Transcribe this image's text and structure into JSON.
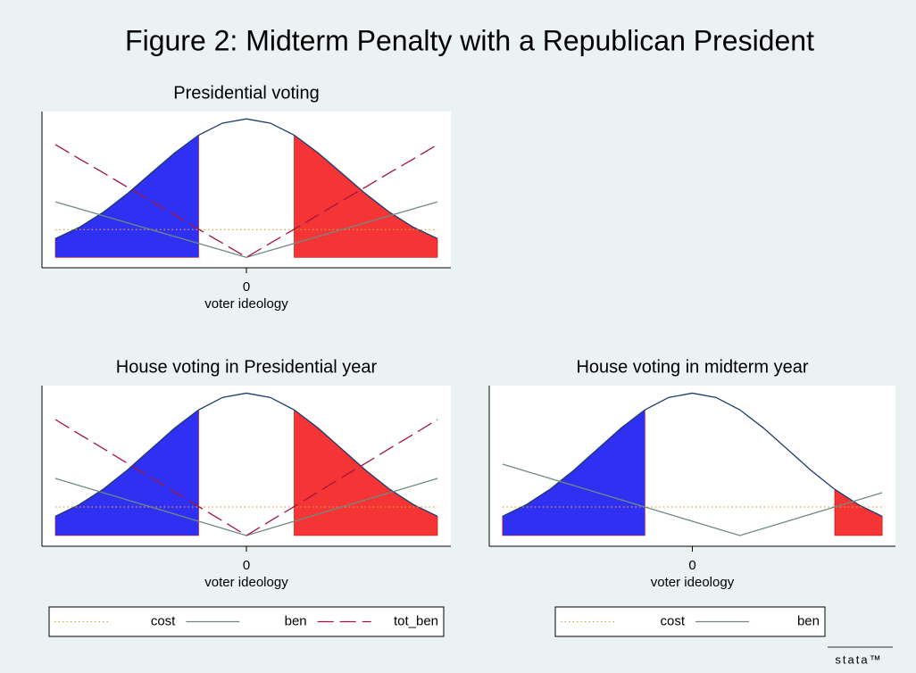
{
  "title": "Figure 2: Midterm Penalty with a Republican President",
  "logo": "stata™",
  "chart_data": [
    {
      "type": "line",
      "title": "Presidential voting",
      "xlabel": "voter ideology",
      "x": [
        -2,
        -1.75,
        -1.5,
        -1.25,
        -1,
        -0.75,
        -0.5,
        -0.25,
        0,
        0.25,
        0.5,
        0.75,
        1,
        1.25,
        1.5,
        1.75,
        2
      ],
      "xlim": [
        -2.14,
        2.14
      ],
      "ylim": [
        -0.03,
        0.42
      ],
      "xticks": [
        0
      ],
      "legend": false,
      "density": {
        "color": "#1a3a6e",
        "values": [
          0.054,
          0.0863,
          0.1295,
          0.1826,
          0.242,
          0.3011,
          0.3521,
          0.3867,
          0.3989,
          0.3867,
          0.3521,
          0.3011,
          0.242,
          0.1826,
          0.1295,
          0.0863,
          0.054
        ]
      },
      "shaded": [
        {
          "from": -2,
          "to": -0.5,
          "color": "#3030f2"
        },
        {
          "from": 0.5,
          "to": 2,
          "color": "#f53535"
        }
      ],
      "series": [
        {
          "name": "cost",
          "color": "#e0a040",
          "style": "dotted",
          "values": [
            0.08,
            0.08,
            0.08,
            0.08,
            0.08,
            0.08,
            0.08,
            0.08,
            0.08,
            0.08,
            0.08,
            0.08,
            0.08,
            0.08,
            0.08,
            0.08,
            0.08
          ]
        },
        {
          "name": "ben",
          "color": "#6f8a80",
          "style": "solid",
          "values": [
            0.16,
            0.14,
            0.12,
            0.1,
            0.08,
            0.06,
            0.04,
            0.02,
            0,
            0.02,
            0.04,
            0.06,
            0.08,
            0.1,
            0.12,
            0.14,
            0.16
          ]
        },
        {
          "name": "tot_ben",
          "color": "#a3143c",
          "style": "dashed",
          "values": [
            0.325,
            0.284,
            0.244,
            0.203,
            0.163,
            0.122,
            0.081,
            0.041,
            0,
            0.041,
            0.081,
            0.122,
            0.163,
            0.203,
            0.244,
            0.284,
            0.325
          ]
        }
      ]
    },
    {
      "type": "line",
      "title": "House voting in Presidential year",
      "xlabel": "voter ideology",
      "x": [
        -2,
        -1.75,
        -1.5,
        -1.25,
        -1,
        -0.75,
        -0.5,
        -0.25,
        0,
        0.25,
        0.5,
        0.75,
        1,
        1.25,
        1.5,
        1.75,
        2
      ],
      "xlim": [
        -2.14,
        2.14
      ],
      "ylim": [
        -0.03,
        0.42
      ],
      "xticks": [
        0
      ],
      "legend": true,
      "density": {
        "color": "#1a3a6e",
        "values": [
          0.054,
          0.0863,
          0.1295,
          0.1826,
          0.242,
          0.3011,
          0.3521,
          0.3867,
          0.3989,
          0.3867,
          0.3521,
          0.3011,
          0.242,
          0.1826,
          0.1295,
          0.0863,
          0.054
        ]
      },
      "shaded": [
        {
          "from": -2,
          "to": -0.5,
          "color": "#3030f2"
        },
        {
          "from": 0.5,
          "to": 2,
          "color": "#f53535"
        }
      ],
      "series": [
        {
          "name": "cost",
          "color": "#e0a040",
          "style": "dotted",
          "values": [
            0.08,
            0.08,
            0.08,
            0.08,
            0.08,
            0.08,
            0.08,
            0.08,
            0.08,
            0.08,
            0.08,
            0.08,
            0.08,
            0.08,
            0.08,
            0.08,
            0.08
          ]
        },
        {
          "name": "ben",
          "color": "#6f8a80",
          "style": "solid",
          "values": [
            0.16,
            0.14,
            0.12,
            0.1,
            0.08,
            0.06,
            0.04,
            0.02,
            0,
            0.02,
            0.04,
            0.06,
            0.08,
            0.1,
            0.12,
            0.14,
            0.16
          ]
        },
        {
          "name": "tot_ben",
          "color": "#a3143c",
          "style": "dashed",
          "values": [
            0.325,
            0.284,
            0.244,
            0.203,
            0.163,
            0.122,
            0.081,
            0.041,
            0,
            0.041,
            0.081,
            0.122,
            0.163,
            0.203,
            0.244,
            0.284,
            0.325
          ]
        }
      ]
    },
    {
      "type": "line",
      "title": "House voting in midterm year",
      "xlabel": "voter ideology",
      "x": [
        -2,
        -1.75,
        -1.5,
        -1.25,
        -1,
        -0.75,
        -0.5,
        -0.25,
        0,
        0.25,
        0.5,
        0.75,
        1,
        1.25,
        1.5,
        1.75,
        2
      ],
      "xlim": [
        -2.14,
        2.14
      ],
      "ylim": [
        -0.03,
        0.42
      ],
      "xticks": [
        0
      ],
      "legend": true,
      "density": {
        "color": "#1a3a6e",
        "values": [
          0.054,
          0.0863,
          0.1295,
          0.1826,
          0.242,
          0.3011,
          0.3521,
          0.3867,
          0.3989,
          0.3867,
          0.3521,
          0.3011,
          0.242,
          0.1826,
          0.1295,
          0.0863,
          0.054
        ]
      },
      "shaded": [
        {
          "from": -2,
          "to": -0.5,
          "color": "#3030f2"
        },
        {
          "from": 1.5,
          "to": 2,
          "color": "#f53535"
        }
      ],
      "series": [
        {
          "name": "cost",
          "color": "#e0a040",
          "style": "dotted",
          "values": [
            0.08,
            0.08,
            0.08,
            0.08,
            0.08,
            0.08,
            0.08,
            0.08,
            0.08,
            0.08,
            0.08,
            0.08,
            0.08,
            0.08,
            0.08,
            0.08,
            0.08
          ]
        },
        {
          "name": "ben",
          "color": "#6f8a80",
          "style": "solid",
          "values": [
            0.2,
            0.18,
            0.16,
            0.14,
            0.12,
            0.1,
            0.08,
            0.06,
            0.04,
            0.02,
            0,
            0.02,
            0.04,
            0.06,
            0.08,
            0.1,
            0.12
          ]
        }
      ]
    }
  ]
}
